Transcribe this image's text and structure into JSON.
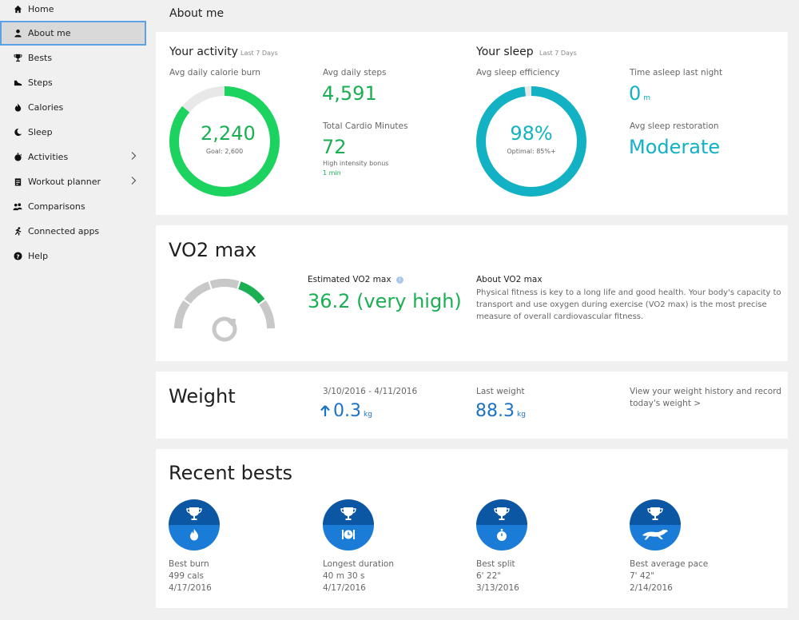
{
  "sidebar": {
    "items": [
      {
        "label": "Home",
        "icon": "home-icon"
      },
      {
        "label": "About me",
        "icon": "person-icon"
      },
      {
        "label": "Bests",
        "icon": "trophy-icon"
      },
      {
        "label": "Steps",
        "icon": "shoe-icon"
      },
      {
        "label": "Calories",
        "icon": "flame-icon"
      },
      {
        "label": "Sleep",
        "icon": "moon-icon"
      },
      {
        "label": "Activities",
        "icon": "stopwatch-icon"
      },
      {
        "label": "Workout planner",
        "icon": "clipboard-icon"
      },
      {
        "label": "Comparisons",
        "icon": "people-icon"
      },
      {
        "label": "Connected apps",
        "icon": "runner-icon"
      },
      {
        "label": "Help",
        "icon": "help-icon"
      }
    ],
    "active": "About me"
  },
  "page": {
    "title": "About me"
  },
  "activity": {
    "title": "Your activity",
    "period": "Last 7 Days",
    "calorie_label": "Avg daily calorie burn",
    "calorie_value": "2,240",
    "calorie_goal": "Goal: 2,600",
    "ring_fraction": 0.86,
    "steps_label": "Avg daily steps",
    "steps_value": "4,591",
    "cardio_label": "Total Cardio Minutes",
    "cardio_value": "72",
    "bonus_label": "High intensity bonus",
    "bonus_value": "1 min"
  },
  "sleep": {
    "title": "Your sleep",
    "period": "Last 7 Days",
    "efficiency_label": "Avg sleep efficiency",
    "efficiency_value": "98%",
    "efficiency_optimal": "Optimal: 85%+",
    "ring_fraction": 0.98,
    "asleep_label": "Time asleep last night",
    "asleep_value": "0",
    "asleep_unit": "m",
    "restoration_label": "Avg sleep restoration",
    "restoration_value": "Moderate"
  },
  "vo2": {
    "title": "VO2 max",
    "estimated_label": "Estimated VO2 max",
    "value": "36.2 (very high)",
    "about_title": "About VO2 max",
    "about_text": "Physical fitness is key to a long life and good health. Your body's capacity to transport and use oxygen during exercise (VO2 max) is the most precise measure of overall cardiovascular fitness.",
    "about_lines": [
      "Physical fitness is key to a long life and good health. Your body's capacity to",
      "transport and use oxygen during exercise (VO2 max) is the most precise",
      "measure of overall cardiovascular fitness."
    ],
    "gauge_segment": 4,
    "gauge_segments": 5
  },
  "weight": {
    "title": "Weight",
    "range_label": "3/10/2016 - 4/11/2016",
    "change_value": "0.3",
    "change_unit": "kg",
    "last_label": "Last weight",
    "last_value": "88.3",
    "last_unit": "kg",
    "history_link_line1": "View your weight history and record",
    "history_link_line2": "today's weight >"
  },
  "bests": {
    "title": "Recent bests",
    "items": [
      {
        "label": "Best burn",
        "value": "499 cals",
        "date": "4/17/2016",
        "icon": "flame-icon"
      },
      {
        "label": "Longest duration",
        "value": "40 m 30 s",
        "date": "4/17/2016",
        "icon": "clock-icon"
      },
      {
        "label": "Best split",
        "value": "6' 22\"",
        "date": "3/13/2016",
        "icon": "stopwatch-icon"
      },
      {
        "label": "Best average pace",
        "value": "7' 42\"",
        "date": "2/14/2016",
        "icon": "cheetah-icon"
      }
    ]
  },
  "colors": {
    "green": "#1aaf53",
    "ring_green": "#1bd35e",
    "teal": "#13b1c4",
    "blue": "#1a73c6",
    "badge_dark": "#0b57a3",
    "badge_light": "#1a7cd6",
    "active_border": "#5ba1e6"
  }
}
